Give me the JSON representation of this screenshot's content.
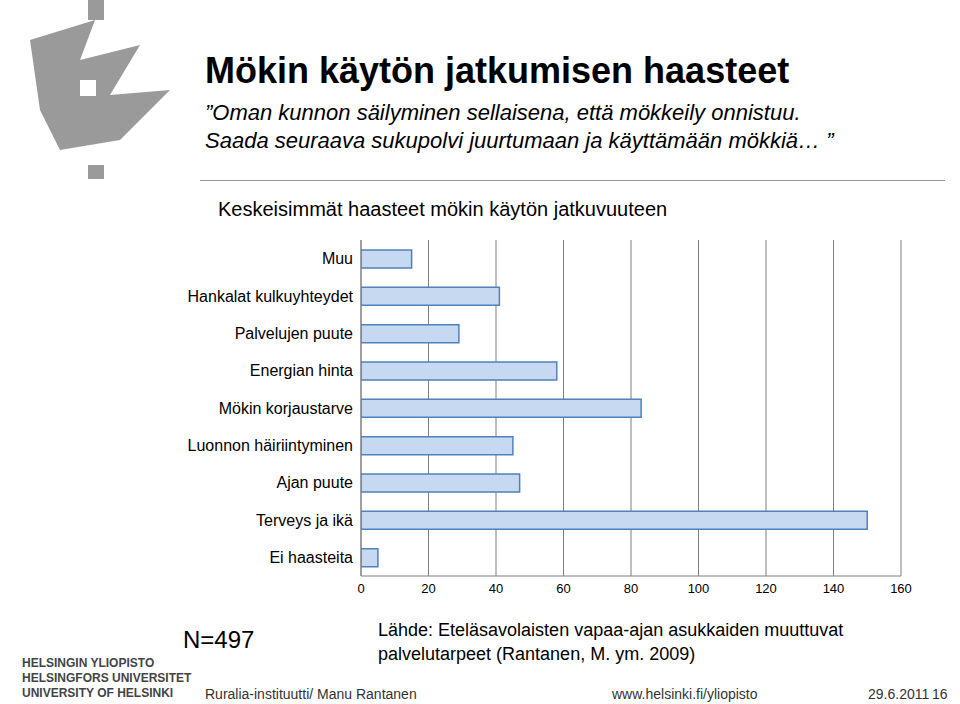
{
  "chart_data": {
    "type": "bar",
    "orientation": "horizontal",
    "title": "Mökin käytön jatkumisen haasteet",
    "subtitle": [
      "”Oman kunnon säilyminen sellaisena, että mökkeily onnistuu.",
      "Saada seuraava sukupolvi juurtumaan ja käyttämään mökkiä… ”"
    ],
    "chart_title": "Keskeisimmät haasteet mökin käytön jatkuvuuteen",
    "categories": [
      "Muu",
      "Hankalat kulkuyhteydet",
      "Palvelujen puute",
      "Energian hinta",
      "Mökin korjaustarve",
      "Luonnon häiriintyminen",
      "Ajan puute",
      "Terveys ja ikä",
      "Ei haasteita"
    ],
    "values": [
      15,
      41,
      29,
      58,
      83,
      45,
      47,
      150,
      5
    ],
    "color": "#c6d9f1",
    "xlim": [
      0,
      160
    ],
    "xticks": [
      0,
      20,
      40,
      60,
      80,
      100,
      120,
      140,
      160
    ],
    "grid": true,
    "annotations": {
      "n": "N=497",
      "source": [
        "Lähde: Eteläsavolaisten vapaa-ajan asukkaiden muuttuvat",
        "palvelutarpeet (Rantanen, M. ym. 2009)"
      ],
      "footer_left": "Ruralia-instituutti/ Manu Rantanen",
      "footer_url": "www.helsinki.fi/yliopisto",
      "footer_date": "29.6.2011",
      "page": "16",
      "logo": [
        "HELSINGIN YLIOPISTO",
        "HELSINGFORS UNIVERSITET",
        "UNIVERSITY OF HELSINKI"
      ]
    }
  }
}
